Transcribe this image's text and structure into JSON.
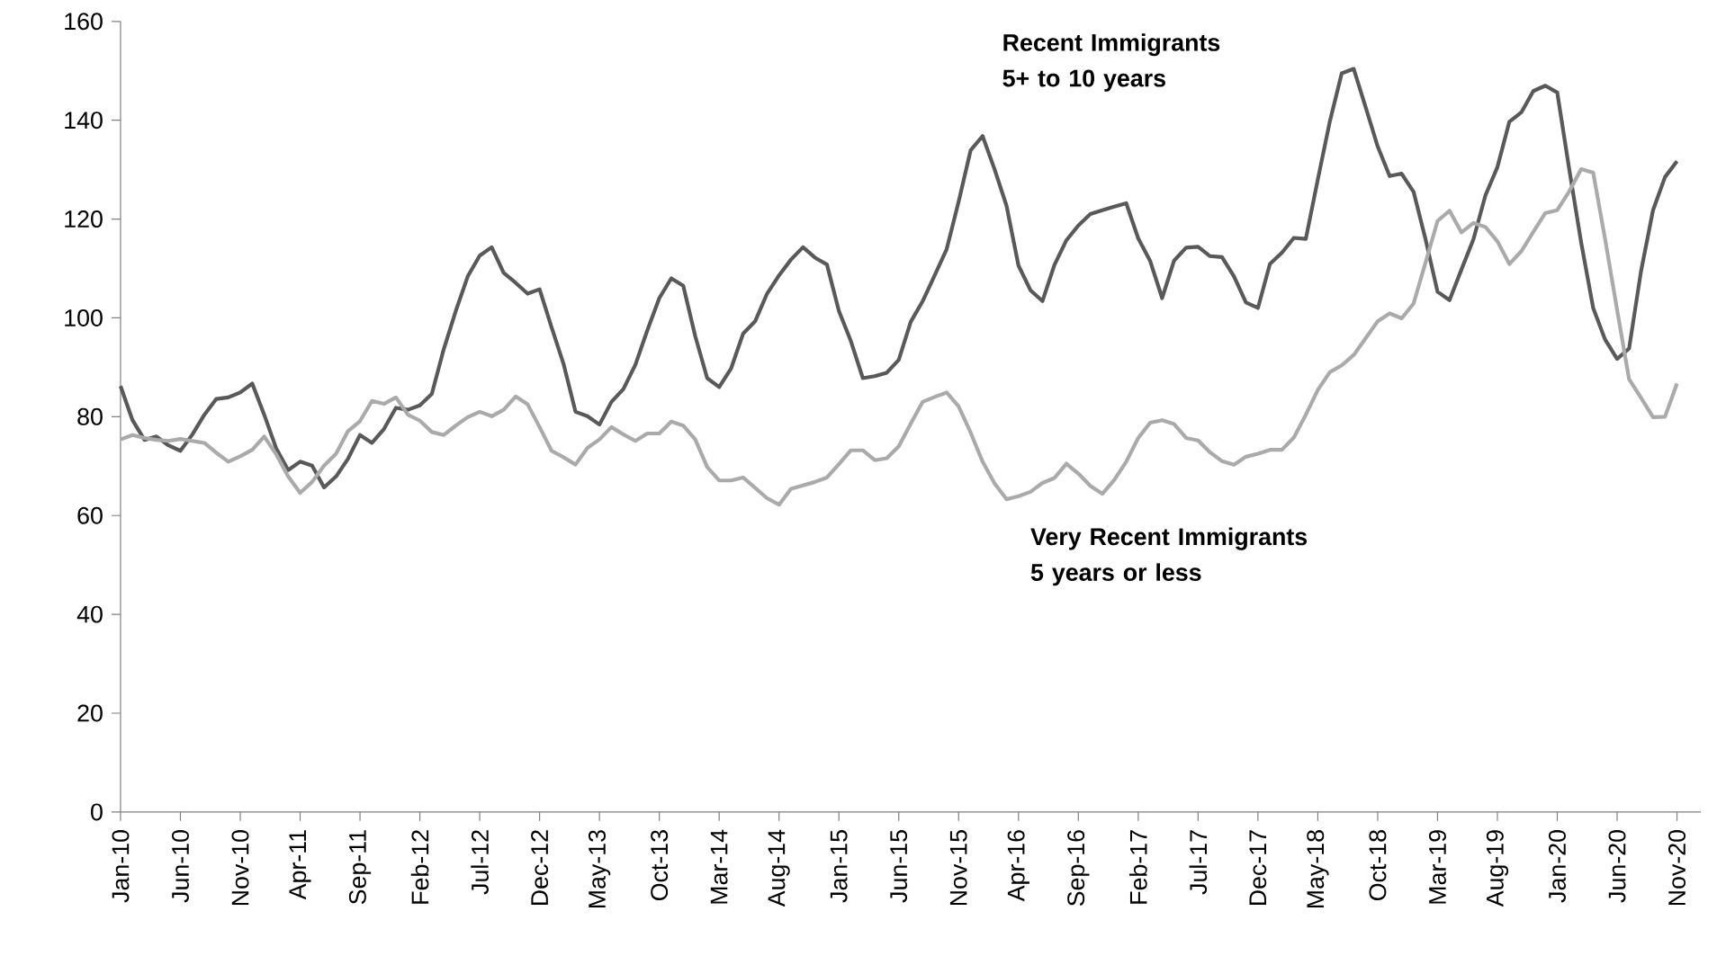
{
  "chart_data": {
    "type": "line",
    "categories": [
      "Jan-10",
      null,
      null,
      null,
      null,
      "Jun-10",
      null,
      null,
      null,
      null,
      "Nov-10",
      null,
      null,
      null,
      null,
      "Apr-11",
      null,
      null,
      null,
      null,
      "Sep-11",
      null,
      null,
      null,
      null,
      "Feb-12",
      null,
      null,
      null,
      null,
      "Jul-12",
      null,
      null,
      null,
      null,
      "Dec-12",
      null,
      null,
      null,
      null,
      "May-13",
      null,
      null,
      null,
      null,
      "Oct-13",
      null,
      null,
      null,
      null,
      "Mar-14",
      null,
      null,
      null,
      null,
      "Aug-14",
      null,
      null,
      null,
      null,
      "Jan-15",
      null,
      null,
      null,
      null,
      "Jun-15",
      null,
      null,
      null,
      null,
      "Nov-15",
      null,
      null,
      null,
      null,
      "Apr-16",
      null,
      null,
      null,
      null,
      "Sep-16",
      null,
      null,
      null,
      null,
      "Feb-17",
      null,
      null,
      null,
      null,
      "Jul-17",
      null,
      null,
      null,
      null,
      "Dec-17",
      null,
      null,
      null,
      null,
      "May-18",
      null,
      null,
      null,
      null,
      "Oct-18",
      null,
      null,
      null,
      null,
      "Mar-19",
      null,
      null,
      null,
      null,
      "Aug-19",
      null,
      null,
      null,
      null,
      "Jan-20",
      null,
      null,
      null,
      null,
      "Jun-20",
      null,
      null,
      null,
      null,
      "Nov-20"
    ],
    "series": [
      {
        "name": "Recent Immigrants 5+ to 10 years",
        "color": "#595959",
        "values": [
          86.2,
          79.3,
          75.3,
          76.0,
          74.2,
          73.1,
          76.4,
          80.4,
          83.6,
          83.9,
          84.9,
          86.7,
          80.4,
          73.6,
          69.2,
          70.9,
          70.1,
          65.7,
          67.9,
          71.5,
          76.3,
          74.7,
          77.5,
          81.8,
          81.4,
          82.3,
          84.6,
          93.7,
          101.4,
          108.4,
          112.6,
          114.3,
          109.1,
          107.1,
          104.9,
          105.8,
          98.1,
          90.7,
          81.0,
          80.1,
          78.4,
          83.0,
          85.6,
          90.5,
          97.5,
          104.0,
          108.0,
          106.5,
          96.3,
          87.8,
          86.0,
          89.8,
          96.8,
          99.3,
          104.9,
          108.6,
          111.8,
          114.3,
          112.2,
          110.8,
          101.4,
          95.3,
          87.8,
          88.2,
          88.9,
          91.5,
          99.2,
          103.4,
          108.6,
          113.9,
          123.5,
          133.9,
          136.8,
          130.1,
          122.7,
          110.6,
          105.6,
          103.4,
          110.7,
          115.7,
          118.7,
          121.0,
          121.8,
          122.5,
          123.2,
          116.1,
          111.5,
          104.0,
          111.6,
          114.2,
          114.4,
          112.5,
          112.3,
          108.4,
          103.1,
          102.0,
          110.9,
          113.2,
          116.2,
          116.0,
          128.0,
          139.7,
          149.5,
          150.4,
          142.6,
          134.7,
          128.7,
          129.2,
          125.5,
          115.9,
          105.3,
          103.6,
          109.8,
          115.9,
          124.8,
          130.5,
          139.7,
          141.6,
          145.9,
          147.0,
          145.6,
          130.1,
          115.2,
          102.0,
          95.6,
          91.7,
          93.8,
          109.5,
          121.8,
          128.5,
          131.7
        ]
      },
      {
        "name": "Very Recent Immigrants 5 years or less",
        "color": "#aaaaaa",
        "values": [
          75.4,
          76.3,
          75.7,
          75.3,
          75.1,
          75.5,
          75.1,
          74.7,
          72.7,
          70.9,
          72.0,
          73.3,
          76.0,
          72.4,
          67.9,
          64.6,
          66.8,
          70.1,
          72.5,
          77.1,
          79.1,
          83.2,
          82.6,
          83.9,
          80.4,
          79.2,
          76.9,
          76.3,
          78.2,
          79.9,
          81.0,
          80.1,
          81.4,
          84.1,
          82.5,
          77.9,
          73.1,
          71.8,
          70.3,
          73.7,
          75.4,
          77.9,
          76.4,
          75.1,
          76.6,
          76.6,
          79.0,
          78.2,
          75.4,
          69.8,
          67.1,
          67.1,
          67.7,
          65.6,
          63.5,
          62.2,
          65.4,
          66.1,
          66.8,
          67.7,
          70.4,
          73.2,
          73.2,
          71.2,
          71.6,
          74.0,
          78.6,
          83.0,
          84.0,
          84.9,
          82.1,
          76.8,
          70.9,
          66.5,
          63.3,
          63.9,
          64.8,
          66.6,
          67.6,
          70.5,
          68.5,
          66.0,
          64.4,
          67.2,
          70.9,
          75.7,
          78.8,
          79.3,
          78.5,
          75.7,
          75.2,
          72.8,
          71.0,
          70.3,
          71.9,
          72.5,
          73.3,
          73.3,
          75.8,
          80.4,
          85.4,
          89.0,
          90.4,
          92.5,
          95.9,
          99.3,
          100.9,
          99.9,
          102.9,
          111.2,
          119.6,
          121.7,
          117.3,
          119.2,
          118.4,
          115.5,
          110.9,
          113.5,
          117.4,
          121.2,
          121.8,
          125.6,
          130.1,
          129.4,
          115.9,
          101.6,
          87.6,
          83.8,
          79.9,
          80.0,
          86.7
        ]
      }
    ],
    "ylim": [
      0,
      160
    ],
    "yticks": [
      0,
      20,
      40,
      60,
      80,
      100,
      120,
      140,
      160
    ]
  }
}
